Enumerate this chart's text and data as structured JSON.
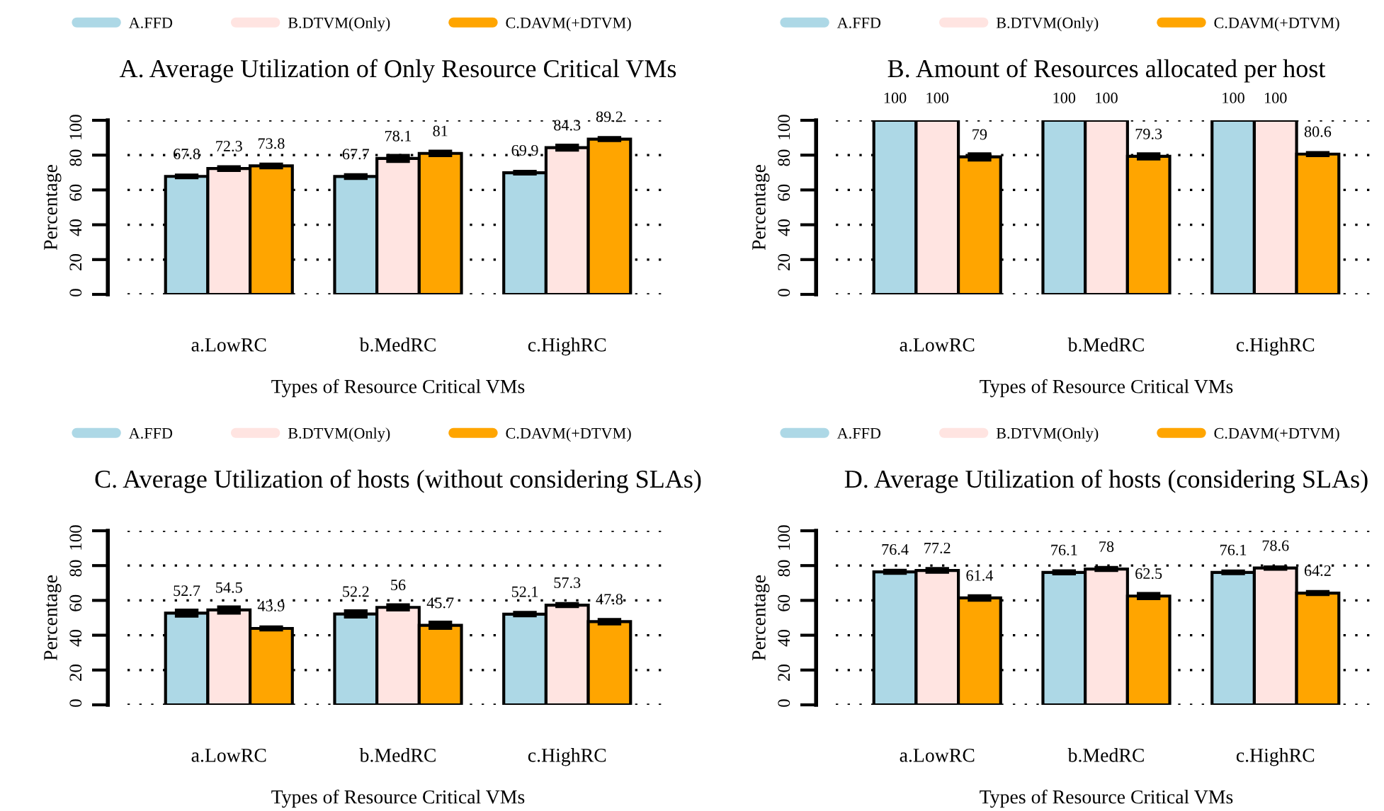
{
  "chart_data": [
    {
      "type": "bar",
      "title": "A. Average Utilization of Only Resource Critical VMs",
      "xlabel": "Types of Resource Critical VMs",
      "ylabel": "Percentage",
      "categories": [
        "a.LowRC",
        "b.MedRC",
        "c.HighRC"
      ],
      "series": [
        {
          "name": "A.FFD",
          "color": "#add8e6",
          "values": [
            67.8,
            67.7,
            69.9
          ],
          "errors": [
            0.5,
            0.8,
            0.5
          ]
        },
        {
          "name": "B.DTVM(Only)",
          "color": "#ffe4e1",
          "values": [
            72.3,
            78.1,
            84.3
          ],
          "errors": [
            0.8,
            1.5,
            1.2
          ]
        },
        {
          "name": "C.DAVM(+DTVM)",
          "color": "#ffa500",
          "values": [
            73.8,
            81,
            89.2
          ],
          "errors": [
            0.8,
            1,
            0.6
          ]
        }
      ],
      "ylim": [
        0,
        100
      ],
      "yticks": [
        0,
        20,
        40,
        60,
        80,
        100
      ],
      "grid": "y",
      "legend": "top",
      "data_labels": true
    },
    {
      "type": "bar",
      "title": "B. Amount of Resources allocated per host",
      "xlabel": "Types of Resource Critical VMs",
      "ylabel": "Percentage",
      "categories": [
        "a.LowRC",
        "b.MedRC",
        "c.HighRC"
      ],
      "series": [
        {
          "name": "A.FFD",
          "color": "#add8e6",
          "values": [
            100,
            100,
            100
          ]
        },
        {
          "name": "B.DTVM(Only)",
          "color": "#ffe4e1",
          "values": [
            100,
            100,
            100
          ]
        },
        {
          "name": "C.DAVM(+DTVM)",
          "color": "#ffa500",
          "values": [
            79,
            79.3,
            80.6
          ],
          "errors": [
            1.5,
            1.2,
            0.6
          ]
        }
      ],
      "ylim": [
        0,
        100
      ],
      "yticks": [
        0,
        20,
        40,
        60,
        80,
        100
      ],
      "grid": "y",
      "legend": "top",
      "data_labels": true
    },
    {
      "type": "bar",
      "title": "C. Average Utilization of hosts (without considering SLAs)",
      "xlabel": "Types of Resource Critical VMs",
      "ylabel": "Percentage",
      "categories": [
        "a.LowRC",
        "b.MedRC",
        "c.HighRC"
      ],
      "series": [
        {
          "name": "A.FFD",
          "color": "#add8e6",
          "values": [
            52.7,
            52.2,
            52.1
          ],
          "errors": [
            1.5,
            1.5,
            0.7
          ]
        },
        {
          "name": "B.DTVM(Only)",
          "color": "#ffe4e1",
          "values": [
            54.5,
            56,
            57.3
          ],
          "errors": [
            1.5,
            1.2,
            0.6
          ]
        },
        {
          "name": "C.DAVM(+DTVM)",
          "color": "#ffa500",
          "values": [
            43.9,
            45.7,
            47.8
          ],
          "errors": [
            0.6,
            1.5,
            1
          ]
        }
      ],
      "ylim": [
        0,
        100
      ],
      "yticks": [
        0,
        20,
        40,
        60,
        80,
        100
      ],
      "grid": "y",
      "legend": "top",
      "data_labels": true
    },
    {
      "type": "bar",
      "title": "D. Average Utilization of hosts (considering SLAs)",
      "xlabel": "Types of Resource Critical VMs",
      "ylabel": "Percentage",
      "categories": [
        "a.LowRC",
        "b.MedRC",
        "c.HighRC"
      ],
      "series": [
        {
          "name": "A.FFD",
          "color": "#add8e6",
          "values": [
            76.4,
            76.1,
            76.1
          ],
          "errors": [
            0.6,
            0.6,
            0.5
          ]
        },
        {
          "name": "B.DTVM(Only)",
          "color": "#ffe4e1",
          "values": [
            77.2,
            78,
            78.6
          ],
          "errors": [
            0.8,
            0.6,
            0.4
          ]
        },
        {
          "name": "C.DAVM(+DTVM)",
          "color": "#ffa500",
          "values": [
            61.4,
            62.5,
            64.2
          ],
          "errors": [
            1,
            1.2,
            0.6
          ]
        }
      ],
      "ylim": [
        0,
        100
      ],
      "yticks": [
        0,
        20,
        40,
        60,
        80,
        100
      ],
      "grid": "y",
      "legend": "top",
      "data_labels": true
    }
  ]
}
